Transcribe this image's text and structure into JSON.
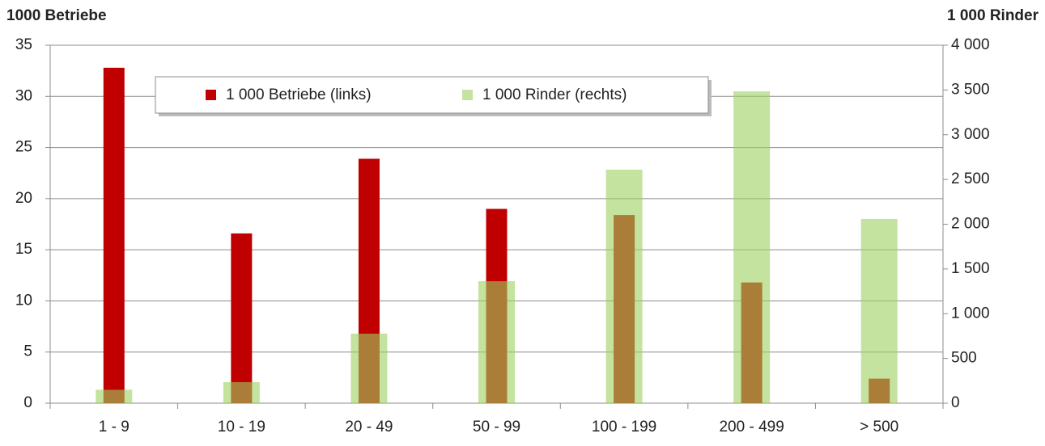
{
  "chart_data": {
    "type": "bar",
    "y_label": "1000 Betriebe",
    "y2_label": "1 000 Rinder",
    "categories": [
      "1 - 9",
      "10 - 19",
      "20 - 49",
      "50 - 99",
      "100 - 199",
      "200 - 499",
      "> 500"
    ],
    "series": [
      {
        "name": "1 000 Betriebe (links)",
        "color": "#c00000",
        "values": [
          32.8,
          16.6,
          23.9,
          19.0,
          18.4,
          11.8,
          2.4
        ]
      },
      {
        "name": "1 000 Rinder (rechts)",
        "color": "#9bd15e",
        "axis": "y2",
        "values": [
          150,
          235,
          777,
          1363,
          2610,
          3485,
          2059
        ]
      }
    ],
    "ylim": [
      0,
      35
    ],
    "yticks": [
      0,
      5,
      10,
      15,
      20,
      25,
      30,
      35
    ],
    "y2lim": [
      0,
      4000
    ],
    "y2ticks": [
      0,
      500,
      {
        "value": 1000,
        "label": "1 000"
      },
      {
        "value": 1500,
        "label": "1 500"
      },
      {
        "value": 2000,
        "label": "2 000"
      },
      {
        "value": 2500,
        "label": "2 500"
      },
      {
        "value": 3000,
        "label": "3 000"
      },
      {
        "value": 3500,
        "label": "3 500"
      },
      {
        "value": 4000,
        "label": "4 000"
      }
    ],
    "grid": true,
    "legend": "top"
  }
}
